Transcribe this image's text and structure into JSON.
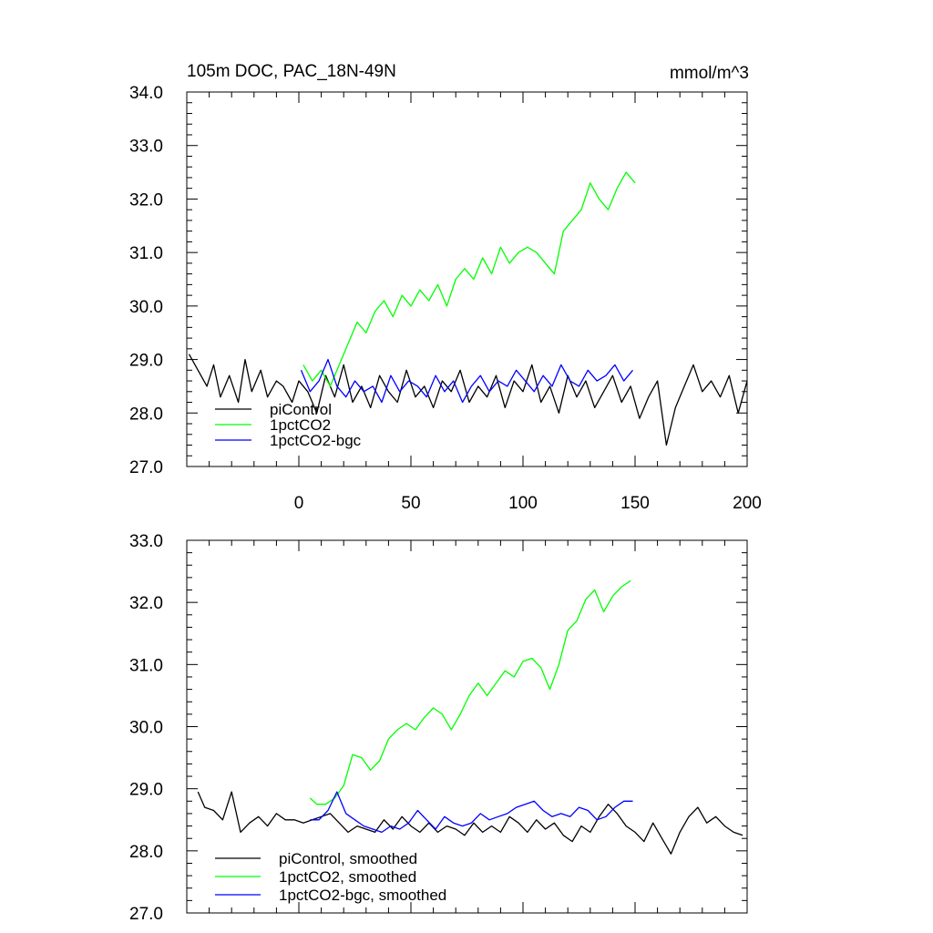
{
  "chart_data": [
    {
      "type": "line",
      "title": "105m DOC, PAC_18N-49N",
      "units": "mmol/m^3",
      "xlim": [
        -50,
        200
      ],
      "ylim": [
        27.0,
        34.0
      ],
      "xticks": [
        0,
        50,
        100,
        150,
        200
      ],
      "xtick_labels": [
        "0",
        "50",
        "100",
        "150",
        "200"
      ],
      "yticks": [
        27.0,
        28.0,
        29.0,
        30.0,
        31.0,
        32.0,
        33.0,
        34.0
      ],
      "ytick_labels": [
        "27.0",
        "28.0",
        "29.0",
        "30.0",
        "31.0",
        "32.0",
        "33.0",
        "34.0"
      ],
      "legend": {
        "position": "bottom-left",
        "labels": [
          "piControl",
          "1pctCO2",
          "1pctCO2-bgc"
        ]
      },
      "series": [
        {
          "name": "piControl",
          "color": "#000000",
          "x": [
            -49,
            -45,
            -41,
            -38,
            -35,
            -31,
            -27,
            -24,
            -21,
            -17,
            -14,
            -10,
            -7,
            -3,
            0,
            4,
            8,
            12,
            16,
            20,
            24,
            28,
            32,
            36,
            40,
            44,
            48,
            52,
            56,
            60,
            64,
            68,
            72,
            76,
            80,
            84,
            88,
            92,
            96,
            100,
            104,
            108,
            112,
            116,
            120,
            124,
            128,
            132,
            136,
            140,
            144,
            148,
            152,
            156,
            160,
            164,
            168,
            172,
            176,
            180,
            184,
            188,
            192,
            196,
            200
          ],
          "values": [
            29.1,
            28.8,
            28.5,
            28.9,
            28.3,
            28.7,
            28.2,
            29.0,
            28.4,
            28.8,
            28.3,
            28.6,
            28.5,
            28.2,
            28.6,
            28.4,
            28.0,
            28.7,
            28.3,
            28.9,
            28.2,
            28.5,
            28.1,
            28.7,
            28.4,
            28.2,
            28.8,
            28.3,
            28.5,
            28.1,
            28.6,
            28.4,
            28.8,
            28.2,
            28.5,
            28.3,
            28.7,
            28.1,
            28.6,
            28.4,
            28.9,
            28.2,
            28.5,
            28.0,
            28.7,
            28.3,
            28.6,
            28.1,
            28.4,
            28.7,
            28.2,
            28.5,
            27.9,
            28.3,
            28.6,
            27.4,
            28.1,
            28.5,
            28.9,
            28.4,
            28.6,
            28.3,
            28.7,
            28.0,
            28.6
          ]
        },
        {
          "name": "1pctCO2",
          "color": "#00ff00",
          "x": [
            2,
            6,
            10,
            14,
            18,
            22,
            26,
            30,
            34,
            38,
            42,
            46,
            50,
            54,
            58,
            62,
            66,
            70,
            74,
            78,
            82,
            86,
            90,
            94,
            98,
            102,
            106,
            110,
            114,
            118,
            122,
            126,
            130,
            134,
            138,
            142,
            146,
            150
          ],
          "values": [
            28.9,
            28.6,
            28.8,
            28.5,
            28.9,
            29.3,
            29.7,
            29.5,
            29.9,
            30.1,
            29.8,
            30.2,
            30.0,
            30.3,
            30.1,
            30.4,
            30.0,
            30.5,
            30.7,
            30.5,
            30.9,
            30.6,
            31.1,
            30.8,
            31.0,
            31.1,
            31.0,
            30.8,
            30.6,
            31.4,
            31.6,
            31.8,
            32.3,
            32.0,
            31.8,
            32.2,
            32.5,
            32.3
          ]
        },
        {
          "name": "1pctCO2-bgc",
          "color": "#0000ff",
          "x": [
            1,
            5,
            9,
            13,
            17,
            21,
            25,
            29,
            33,
            37,
            41,
            45,
            49,
            53,
            57,
            61,
            65,
            69,
            73,
            77,
            81,
            85,
            89,
            93,
            97,
            101,
            105,
            109,
            113,
            117,
            121,
            125,
            129,
            133,
            137,
            141,
            145,
            149
          ],
          "values": [
            28.8,
            28.4,
            28.6,
            29.0,
            28.5,
            28.3,
            28.6,
            28.4,
            28.5,
            28.2,
            28.7,
            28.4,
            28.6,
            28.5,
            28.3,
            28.7,
            28.4,
            28.6,
            28.2,
            28.5,
            28.7,
            28.4,
            28.6,
            28.5,
            28.8,
            28.6,
            28.4,
            28.7,
            28.5,
            28.9,
            28.6,
            28.5,
            28.8,
            28.6,
            28.7,
            28.9,
            28.6,
            28.8
          ]
        }
      ]
    },
    {
      "type": "line",
      "xlim": [
        -50,
        200
      ],
      "ylim": [
        27.0,
        33.0
      ],
      "xticks": [
        0,
        50,
        100,
        150,
        200
      ],
      "yticks": [
        27.0,
        28.0,
        29.0,
        30.0,
        31.0,
        32.0,
        33.0
      ],
      "ytick_labels": [
        "27.0",
        "28.0",
        "29.0",
        "30.0",
        "31.0",
        "32.0",
        "33.0"
      ],
      "legend": {
        "position": "bottom-left",
        "labels": [
          "piControl, smoothed",
          "1pctCO2, smoothed",
          "1pctCO2-bgc, smoothed"
        ]
      },
      "series": [
        {
          "name": "piControl, smoothed",
          "color": "#000000",
          "x": [
            -45,
            -42,
            -38,
            -34,
            -30,
            -26,
            -22,
            -18,
            -14,
            -10,
            -6,
            -2,
            2,
            6,
            10,
            14,
            18,
            22,
            26,
            30,
            34,
            38,
            42,
            46,
            50,
            54,
            58,
            62,
            66,
            70,
            74,
            78,
            82,
            86,
            90,
            94,
            98,
            102,
            106,
            110,
            114,
            118,
            122,
            126,
            130,
            134,
            138,
            142,
            146,
            150,
            154,
            158,
            162,
            166,
            170,
            174,
            178,
            182,
            186,
            190,
            194,
            198
          ],
          "values": [
            28.95,
            28.7,
            28.65,
            28.5,
            28.95,
            28.3,
            28.45,
            28.55,
            28.4,
            28.6,
            28.5,
            28.5,
            28.45,
            28.5,
            28.55,
            28.6,
            28.45,
            28.3,
            28.4,
            28.35,
            28.3,
            28.5,
            28.35,
            28.55,
            28.4,
            28.3,
            28.45,
            28.3,
            28.4,
            28.35,
            28.25,
            28.45,
            28.3,
            28.4,
            28.3,
            28.55,
            28.45,
            28.3,
            28.5,
            28.35,
            28.45,
            28.25,
            28.15,
            28.4,
            28.3,
            28.55,
            28.75,
            28.6,
            28.4,
            28.3,
            28.15,
            28.45,
            28.2,
            27.95,
            28.3,
            28.55,
            28.7,
            28.45,
            28.55,
            28.4,
            28.3,
            28.25
          ]
        },
        {
          "name": "1pctCO2, smoothed",
          "color": "#00ff00",
          "x": [
            5,
            8,
            12,
            16,
            20,
            24,
            28,
            32,
            36,
            40,
            44,
            48,
            52,
            56,
            60,
            64,
            68,
            72,
            76,
            80,
            84,
            88,
            92,
            96,
            100,
            104,
            108,
            112,
            116,
            120,
            124,
            128,
            132,
            136,
            140,
            144,
            148
          ],
          "values": [
            28.85,
            28.75,
            28.75,
            28.85,
            29.05,
            29.55,
            29.5,
            29.3,
            29.45,
            29.8,
            29.95,
            30.05,
            29.95,
            30.15,
            30.3,
            30.2,
            29.95,
            30.2,
            30.5,
            30.7,
            30.5,
            30.7,
            30.9,
            30.8,
            31.05,
            31.1,
            30.95,
            30.6,
            31.0,
            31.55,
            31.7,
            32.05,
            32.2,
            31.85,
            32.1,
            32.25,
            32.35
          ]
        },
        {
          "name": "1pctCO2-bgc, smoothed",
          "color": "#0000ff",
          "x": [
            5,
            9,
            13,
            17,
            21,
            25,
            29,
            33,
            37,
            41,
            45,
            49,
            53,
            57,
            61,
            65,
            69,
            73,
            77,
            81,
            85,
            89,
            93,
            97,
            101,
            105,
            109,
            113,
            117,
            121,
            125,
            129,
            133,
            137,
            141,
            145,
            149
          ],
          "values": [
            28.5,
            28.5,
            28.65,
            28.95,
            28.6,
            28.5,
            28.4,
            28.35,
            28.3,
            28.4,
            28.35,
            28.45,
            28.65,
            28.5,
            28.35,
            28.55,
            28.45,
            28.4,
            28.45,
            28.6,
            28.5,
            28.55,
            28.6,
            28.7,
            28.75,
            28.8,
            28.65,
            28.55,
            28.6,
            28.55,
            28.7,
            28.65,
            28.5,
            28.55,
            28.7,
            28.8,
            28.8
          ]
        }
      ]
    }
  ]
}
